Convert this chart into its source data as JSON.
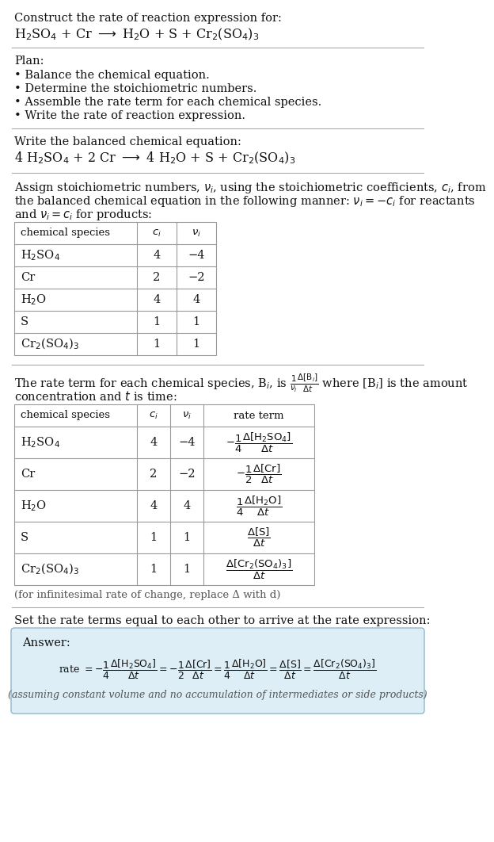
{
  "bg_color": "#ffffff",
  "text_color": "#111111",
  "title_line1": "Construct the rate of reaction expression for:",
  "reaction_unbalanced": "H$_2$SO$_4$ + Cr $\\longrightarrow$ H$_2$O + S + Cr$_2$(SO$_4$)$_3$",
  "plan_header": "Plan:",
  "plan_items": [
    "• Balance the chemical equation.",
    "• Determine the stoichiometric numbers.",
    "• Assemble the rate term for each chemical species.",
    "• Write the rate of reaction expression."
  ],
  "balanced_header": "Write the balanced chemical equation:",
  "reaction_balanced": "4 H$_2$SO$_4$ + 2 Cr $\\longrightarrow$ 4 H$_2$O + S + Cr$_2$(SO$_4$)$_3$",
  "stoich_header_line1": "Assign stoichiometric numbers, $\\nu_i$, using the stoichiometric coefficients, $c_i$, from",
  "stoich_header_line2": "the balanced chemical equation in the following manner: $\\nu_i = -c_i$ for reactants",
  "stoich_header_line3": "and $\\nu_i = c_i$ for products:",
  "table1_col0_header": "chemical species",
  "table1_col1_header": "$c_i$",
  "table1_col2_header": "$\\nu_i$",
  "table1_rows": [
    [
      "H$_2$SO$_4$",
      "4",
      "−4"
    ],
    [
      "Cr",
      "2",
      "−2"
    ],
    [
      "H$_2$O",
      "4",
      "4"
    ],
    [
      "S",
      "1",
      "1"
    ],
    [
      "Cr$_2$(SO$_4$)$_3$",
      "1",
      "1"
    ]
  ],
  "rate_header_line1": "The rate term for each chemical species, B$_i$, is $\\frac{1}{\\nu_i}\\frac{\\Delta[\\mathrm{B}_i]}{\\Delta t}$ where [B$_i$] is the amount",
  "rate_header_line2": "concentration and $t$ is time:",
  "table2_col0_header": "chemical species",
  "table2_col1_header": "$c_i$",
  "table2_col2_header": "$\\nu_i$",
  "table2_col3_header": "rate term",
  "table2_rows": [
    [
      "H$_2$SO$_4$",
      "4",
      "−4",
      "$-\\dfrac{1}{4}\\dfrac{\\Delta[\\mathrm{H_2SO_4}]}{\\Delta t}$"
    ],
    [
      "Cr",
      "2",
      "−2",
      "$-\\dfrac{1}{2}\\dfrac{\\Delta[\\mathrm{Cr}]}{\\Delta t}$"
    ],
    [
      "H$_2$O",
      "4",
      "4",
      "$\\dfrac{1}{4}\\dfrac{\\Delta[\\mathrm{H_2O}]}{\\Delta t}$"
    ],
    [
      "S",
      "1",
      "1",
      "$\\dfrac{\\Delta[\\mathrm{S}]}{\\Delta t}$"
    ],
    [
      "Cr$_2$(SO$_4$)$_3$",
      "1",
      "1",
      "$\\dfrac{\\Delta[\\mathrm{Cr_2(SO_4)_3}]}{\\Delta t}$"
    ]
  ],
  "infinitesimal_note": "(for infinitesimal rate of change, replace Δ with d)",
  "set_equal_header": "Set the rate terms equal to each other to arrive at the rate expression:",
  "answer_box_color": "#ddeef6",
  "answer_box_border": "#90b8cc",
  "answer_label": "Answer:",
  "answer_rate_line": "rate $= -\\dfrac{1}{4}\\dfrac{\\Delta[\\mathrm{H_2SO_4}]}{\\Delta t} = -\\dfrac{1}{2}\\dfrac{\\Delta[\\mathrm{Cr}]}{\\Delta t} = \\dfrac{1}{4}\\dfrac{\\Delta[\\mathrm{H_2O}]}{\\Delta t} = \\dfrac{\\Delta[\\mathrm{S}]}{\\Delta t} = \\dfrac{\\Delta[\\mathrm{Cr_2(SO_4)_3}]}{\\Delta t}$",
  "assuming_note": "(assuming constant volume and no accumulation of intermediates or side products)"
}
